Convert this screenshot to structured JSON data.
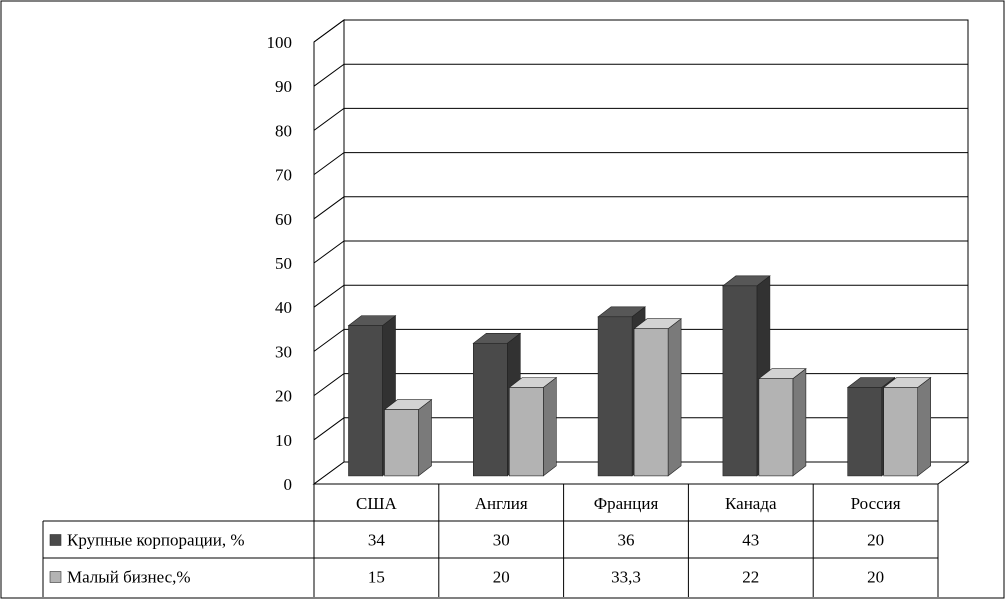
{
  "chart_data": {
    "type": "bar",
    "style": "3d-clustered-column",
    "categories": [
      "США",
      "Англия",
      "Франция",
      "Канада",
      "Россия"
    ],
    "series": [
      {
        "name": "Крупные корпорации, %",
        "values": [
          34,
          30,
          36,
          43,
          20
        ],
        "labels": [
          "34",
          "30",
          "36",
          "43",
          "20"
        ],
        "color": "#4a4a4a"
      },
      {
        "name": "Малый бизнес,%",
        "values": [
          15,
          20,
          33.3,
          22,
          20
        ],
        "labels": [
          "15",
          "20",
          "33,3",
          "22",
          "20"
        ],
        "color": "#b3b3b3"
      }
    ],
    "yticks": [
      "0",
      "10",
      "20",
      "30",
      "40",
      "50",
      "60",
      "70",
      "80",
      "90",
      "100"
    ],
    "ylim": [
      0,
      100
    ],
    "grid": true,
    "legend": "data-table",
    "title": "",
    "xlabel": "",
    "ylabel": ""
  }
}
